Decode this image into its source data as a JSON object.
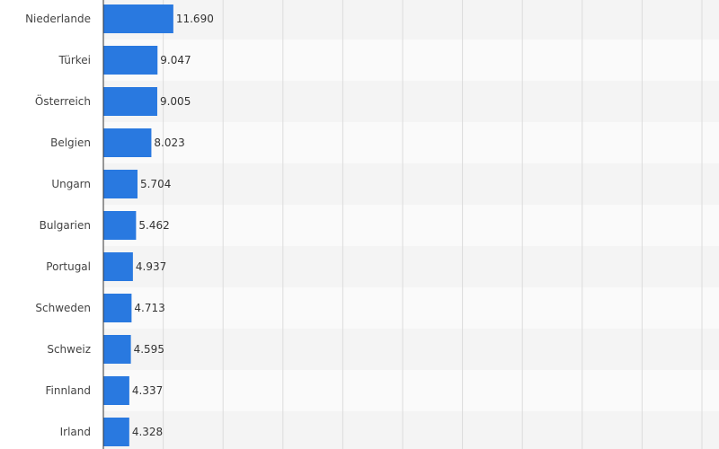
{
  "chart_data": {
    "type": "bar",
    "orientation": "horizontal",
    "categories": [
      "Niederlande",
      "Türkei",
      "Österreich",
      "Belgien",
      "Ungarn",
      "Bulgarien",
      "Portugal",
      "Schweden",
      "Schweiz",
      "Finnland",
      "Irland"
    ],
    "values": [
      11690,
      9047,
      9005,
      8023,
      5704,
      5462,
      4937,
      4713,
      4595,
      4337,
      4328
    ],
    "value_labels": [
      "11.690",
      "9.047",
      "9.005",
      "8.023",
      "5.704",
      "5.462",
      "4.937",
      "4.713",
      "4.595",
      "4.337",
      "4.328"
    ],
    "xlim": [
      0,
      100000
    ],
    "grid": true,
    "colors": {
      "bar": "#2979e0",
      "grid": "#dcdcdc",
      "band_alt": "#f4f4f4",
      "band": "#fafafa",
      "axis": "#333333"
    }
  }
}
